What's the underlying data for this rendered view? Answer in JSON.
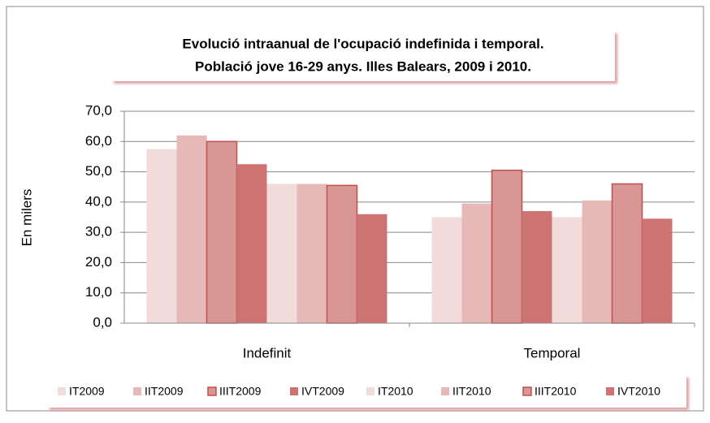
{
  "chart_data": {
    "type": "bar",
    "title": [
      "Evolució intraanual de l'ocupació indefinida i temporal.",
      "Població jove 16-29 anys. Illes Balears, 2009 i 2010."
    ],
    "y_label": "En milers",
    "categories": [
      "Indefinit",
      "Temporal"
    ],
    "series": [
      {
        "name": "IT2009",
        "color": "#f2dcdb",
        "values": [
          57.5,
          35
        ]
      },
      {
        "name": "IIT2009",
        "color": "#e6b9b8",
        "values": [
          62,
          39.5
        ]
      },
      {
        "name": "IIIT2009",
        "color": "#d99694",
        "stroke": "#c0504d",
        "values": [
          60,
          50.5
        ]
      },
      {
        "name": "IVT2009",
        "color": "#cd7371",
        "values": [
          52.5,
          37
        ]
      },
      {
        "name": "IT2010",
        "color": "#f2dcdb",
        "values": [
          46,
          35
        ]
      },
      {
        "name": "IIT2010",
        "color": "#e6b9b8",
        "values": [
          46,
          40.5
        ]
      },
      {
        "name": "IIIT2010",
        "color": "#d99694",
        "stroke": "#c0504d",
        "values": [
          45.5,
          46
        ]
      },
      {
        "name": "IVT2010",
        "color": "#cd7371",
        "values": [
          36,
          34.5
        ]
      }
    ],
    "ylim": [
      0,
      70
    ],
    "yticks": [
      {
        "value": 0,
        "label": "0,0"
      },
      {
        "value": 10,
        "label": "10,0"
      },
      {
        "value": 20,
        "label": "20,0"
      },
      {
        "value": 30,
        "label": "30,0"
      },
      {
        "value": 40,
        "label": "40,0"
      },
      {
        "value": 50,
        "label": "50,0"
      },
      {
        "value": 60,
        "label": "60,0"
      },
      {
        "value": 70,
        "label": "70,0"
      }
    ],
    "grid": true,
    "legend": "bottom"
  }
}
